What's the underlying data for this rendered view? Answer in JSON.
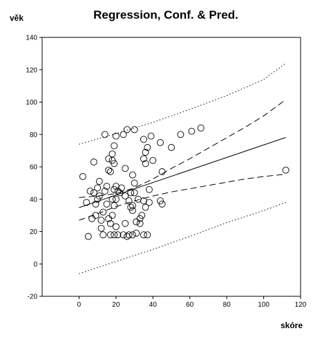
{
  "chart_data": {
    "type": "scatter",
    "title": "Regression, Conf. & Pred.",
    "xlabel": "skóre",
    "ylabel": "věk",
    "xlim": [
      -20,
      120
    ],
    "ylim": [
      -20,
      140
    ],
    "x_ticks": [
      0,
      20,
      40,
      60,
      80,
      100,
      120
    ],
    "y_ticks": [
      -20,
      0,
      20,
      40,
      60,
      80,
      100,
      120,
      140
    ],
    "x_tick_labels": [
      "0",
      "20",
      "40",
      "60",
      "80",
      "100",
      "120"
    ],
    "y_tick_labels": [
      "-20",
      "0",
      "20",
      "40",
      "60",
      "80",
      "100",
      "120",
      "140"
    ],
    "grid": false,
    "legend": "none",
    "points": [
      [
        2,
        54
      ],
      [
        4,
        38
      ],
      [
        5,
        17
      ],
      [
        6,
        45
      ],
      [
        7,
        28
      ],
      [
        8,
        63
      ],
      [
        8,
        44
      ],
      [
        9,
        37
      ],
      [
        9,
        30
      ],
      [
        10,
        40
      ],
      [
        10,
        47
      ],
      [
        11,
        51
      ],
      [
        11,
        42
      ],
      [
        12,
        22
      ],
      [
        12,
        27
      ],
      [
        13,
        32
      ],
      [
        13,
        18
      ],
      [
        14,
        80
      ],
      [
        14,
        45
      ],
      [
        15,
        48
      ],
      [
        15,
        37
      ],
      [
        16,
        65
      ],
      [
        16,
        58
      ],
      [
        16,
        28
      ],
      [
        17,
        57
      ],
      [
        17,
        18
      ],
      [
        17,
        25
      ],
      [
        18,
        68
      ],
      [
        18,
        64
      ],
      [
        18,
        40
      ],
      [
        18,
        30
      ],
      [
        19,
        73
      ],
      [
        19,
        62
      ],
      [
        19,
        46
      ],
      [
        19,
        36
      ],
      [
        19,
        18
      ],
      [
        20,
        79
      ],
      [
        20,
        48
      ],
      [
        20,
        40
      ],
      [
        20,
        23
      ],
      [
        21,
        45
      ],
      [
        21,
        18
      ],
      [
        22,
        44
      ],
      [
        23,
        47
      ],
      [
        24,
        80
      ],
      [
        24,
        18
      ],
      [
        25,
        59
      ],
      [
        25,
        42
      ],
      [
        25,
        25
      ],
      [
        26,
        83
      ],
      [
        26,
        17
      ],
      [
        27,
        39
      ],
      [
        27,
        18
      ],
      [
        28,
        44
      ],
      [
        28,
        35
      ],
      [
        29,
        55
      ],
      [
        29,
        36
      ],
      [
        29,
        33
      ],
      [
        29,
        18
      ],
      [
        30,
        83
      ],
      [
        30,
        50
      ],
      [
        30,
        44
      ],
      [
        31,
        26
      ],
      [
        31,
        19
      ],
      [
        32,
        40
      ],
      [
        33,
        28
      ],
      [
        33,
        25
      ],
      [
        34,
        30
      ],
      [
        35,
        77
      ],
      [
        35,
        65
      ],
      [
        35,
        39
      ],
      [
        35,
        18
      ],
      [
        36,
        69
      ],
      [
        36,
        62
      ],
      [
        36,
        35
      ],
      [
        37,
        72
      ],
      [
        37,
        18
      ],
      [
        38,
        46
      ],
      [
        38,
        38
      ],
      [
        39,
        79
      ],
      [
        40,
        64
      ],
      [
        44,
        75
      ],
      [
        44,
        39
      ],
      [
        45,
        57
      ],
      [
        45,
        37
      ],
      [
        50,
        72
      ],
      [
        55,
        80
      ],
      [
        61,
        82
      ],
      [
        66,
        84
      ],
      [
        112,
        58
      ]
    ],
    "fit_line": [
      [
        0,
        34.8
      ],
      [
        112,
        78.2
      ]
    ],
    "conf_upper": [
      [
        0,
        41
      ],
      [
        10,
        42
      ],
      [
        20,
        43.5
      ],
      [
        30,
        47
      ],
      [
        40,
        52.5
      ],
      [
        50,
        59
      ],
      [
        60,
        65
      ],
      [
        70,
        71.5
      ],
      [
        80,
        78
      ],
      [
        90,
        84.5
      ],
      [
        100,
        91.5
      ],
      [
        112,
        101.5
      ]
    ],
    "conf_lower": [
      [
        0,
        27
      ],
      [
        10,
        31
      ],
      [
        20,
        35.5
      ],
      [
        30,
        39
      ],
      [
        40,
        42
      ],
      [
        50,
        44.5
      ],
      [
        60,
        46.5
      ],
      [
        70,
        48.5
      ],
      [
        80,
        50.5
      ],
      [
        90,
        52.5
      ],
      [
        100,
        54
      ],
      [
        112,
        55.5
      ]
    ],
    "pred_upper": [
      [
        0,
        74
      ],
      [
        20,
        80.5
      ],
      [
        40,
        87.5
      ],
      [
        60,
        95.5
      ],
      [
        80,
        104
      ],
      [
        100,
        114
      ],
      [
        112,
        124
      ]
    ],
    "pred_lower": [
      [
        0,
        -6
      ],
      [
        20,
        1.5
      ],
      [
        40,
        9
      ],
      [
        60,
        17
      ],
      [
        80,
        25.5
      ],
      [
        100,
        33
      ],
      [
        112,
        38
      ]
    ]
  }
}
